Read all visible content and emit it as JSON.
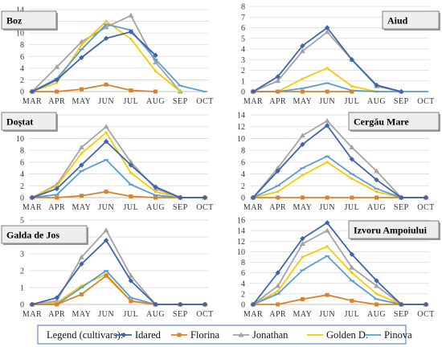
{
  "colors": {
    "Idared": "#3f63ad",
    "Florina": "#d9822b",
    "Jonathan": "#a3a3a3",
    "Golden D.": "#f2cb05",
    "Pinova": "#5b9bd5"
  },
  "legend": {
    "label": "Legend (cultivars):",
    "items": [
      "Idared",
      "Florina",
      "Jonathan",
      "Golden D.",
      "Pinova"
    ]
  },
  "chart_data": [
    {
      "type": "line",
      "title": "Boz",
      "title_position": "top-left",
      "categories": [
        "MAR",
        "APR",
        "MAY",
        "JUN",
        "JUL",
        "AUG",
        "SEP",
        "OCT"
      ],
      "ylim": [
        0,
        14
      ],
      "yticks": [
        0,
        2,
        4,
        6,
        8,
        10,
        12,
        14
      ],
      "grid": true,
      "series": [
        {
          "name": "Idared",
          "values": [
            0,
            2,
            5.8,
            9.1,
            10.2,
            6.2,
            null,
            null
          ]
        },
        {
          "name": "Florina",
          "values": [
            0,
            0,
            0.4,
            1.2,
            0.2,
            0,
            null,
            null
          ]
        },
        {
          "name": "Jonathan",
          "values": [
            0,
            4.2,
            8.5,
            11,
            13,
            5,
            0,
            null
          ]
        },
        {
          "name": "Golden D.",
          "values": [
            0,
            1.5,
            8,
            12,
            9,
            3.5,
            0,
            null
          ]
        },
        {
          "name": "Pinova",
          "values": [
            0,
            2.2,
            7.2,
            11.5,
            10.5,
            5.5,
            1,
            0
          ]
        }
      ]
    },
    {
      "type": "line",
      "title": "Aiud",
      "title_position": "top-right",
      "categories": [
        "MAR",
        "APR",
        "MAY",
        "JUN",
        "JUL",
        "AUG",
        "SEP",
        "OCT"
      ],
      "ylim": [
        0,
        8
      ],
      "yticks": [
        0,
        1,
        2,
        3,
        4,
        5,
        6,
        7,
        8
      ],
      "grid": true,
      "series": [
        {
          "name": "Idared",
          "values": [
            0,
            1.4,
            4.3,
            6,
            3,
            0.6,
            0,
            null
          ]
        },
        {
          "name": "Florina",
          "values": [
            0,
            0,
            0,
            0,
            0,
            null,
            null,
            null
          ]
        },
        {
          "name": "Jonathan",
          "values": [
            0,
            1,
            3.8,
            5.6,
            3,
            0.5,
            0,
            null
          ]
        },
        {
          "name": "Golden D.",
          "values": [
            0,
            0,
            1.2,
            2.2,
            0.5,
            0,
            0,
            null
          ]
        },
        {
          "name": "Pinova",
          "values": [
            0,
            0,
            0.3,
            0.8,
            0.1,
            0,
            0,
            0
          ]
        }
      ]
    },
    {
      "type": "line",
      "title": "Doștat",
      "title_position": "top-left",
      "categories": [
        "MAR",
        "APR",
        "MAY",
        "JUN",
        "JUL",
        "AUG",
        "SEP",
        "OCT"
      ],
      "ylim": [
        0,
        14
      ],
      "yticks": [
        0,
        2,
        4,
        6,
        8,
        10,
        12,
        14
      ],
      "grid": true,
      "series": [
        {
          "name": "Idared",
          "values": [
            0,
            1.5,
            5.5,
            9.5,
            5.5,
            1.8,
            0,
            0
          ]
        },
        {
          "name": "Florina",
          "values": [
            0,
            0,
            0.3,
            1,
            0.2,
            0,
            0,
            0
          ]
        },
        {
          "name": "Jonathan",
          "values": [
            0,
            2.2,
            8.5,
            12,
            6,
            1.5,
            0,
            0
          ]
        },
        {
          "name": "Golden D.",
          "values": [
            0,
            2,
            7.5,
            11,
            4.2,
            1,
            0,
            0
          ]
        },
        {
          "name": "Pinova",
          "values": [
            0,
            0.5,
            4.5,
            6.4,
            2.2,
            0.4,
            0,
            0
          ]
        }
      ]
    },
    {
      "type": "line",
      "title": "Cergău Mare",
      "title_position": "top-right",
      "categories": [
        "MAR",
        "APR",
        "MAY",
        "JUN",
        "JUL",
        "AUG",
        "SEP",
        "OCT"
      ],
      "ylim": [
        0,
        14
      ],
      "yticks": [
        0,
        2,
        4,
        6,
        8,
        10,
        12,
        14
      ],
      "grid": true,
      "series": [
        {
          "name": "Idared",
          "values": [
            0,
            4.5,
            9,
            12.2,
            6.5,
            3,
            0,
            0
          ]
        },
        {
          "name": "Florina",
          "values": [
            0,
            0,
            0,
            0,
            0,
            0,
            0,
            0
          ]
        },
        {
          "name": "Jonathan",
          "values": [
            0,
            5,
            10.5,
            13,
            8.5,
            4.5,
            0,
            0
          ]
        },
        {
          "name": "Golden D.",
          "values": [
            0,
            1,
            3.8,
            6,
            3.2,
            1,
            0,
            0
          ]
        },
        {
          "name": "Pinova",
          "values": [
            0,
            2,
            5,
            7,
            4,
            1.5,
            0,
            0
          ]
        }
      ]
    },
    {
      "type": "line",
      "title": "Galda de Jos",
      "title_position": "top-left",
      "categories": [
        "MAR",
        "APR",
        "MAY",
        "JUN",
        "JUL",
        "AUG",
        "SEP",
        "OCT"
      ],
      "ylim": [
        0,
        5
      ],
      "yticks": [
        0,
        1,
        2,
        3,
        4,
        5
      ],
      "grid": true,
      "series": [
        {
          "name": "Idared",
          "values": [
            0,
            0.4,
            2.4,
            3.8,
            1.4,
            0,
            0,
            0
          ]
        },
        {
          "name": "Florina",
          "values": [
            0,
            0,
            0.6,
            1.7,
            0.2,
            0,
            0,
            0
          ]
        },
        {
          "name": "Jonathan",
          "values": [
            0,
            0.2,
            2.8,
            4.4,
            1.7,
            0,
            0,
            0
          ]
        },
        {
          "name": "Golden D.",
          "values": [
            0,
            0.1,
            1.1,
            1.8,
            0.2,
            0,
            0,
            0
          ]
        },
        {
          "name": "Pinova",
          "values": [
            0,
            0,
            1,
            2,
            0.4,
            0,
            0,
            0
          ]
        }
      ]
    },
    {
      "type": "line",
      "title": "Izvoru Ampoiului",
      "title_position": "top-right",
      "categories": [
        "MAR",
        "APR",
        "MAY",
        "JUN",
        "JUL",
        "AUG",
        "SEP",
        "OCT"
      ],
      "ylim": [
        0,
        16
      ],
      "yticks": [
        0,
        2,
        4,
        6,
        8,
        10,
        12,
        14,
        16
      ],
      "grid": true,
      "series": [
        {
          "name": "Idared",
          "values": [
            0,
            6,
            12.5,
            15.5,
            9.5,
            4.5,
            0,
            0
          ]
        },
        {
          "name": "Florina",
          "values": [
            0,
            0,
            1,
            1.8,
            0.7,
            0,
            0,
            0
          ]
        },
        {
          "name": "Jonathan",
          "values": [
            0,
            3.5,
            11.5,
            14,
            7,
            3.5,
            0,
            0
          ]
        },
        {
          "name": "Golden D.",
          "values": [
            0,
            2.5,
            9,
            11,
            6,
            2,
            0,
            0
          ]
        },
        {
          "name": "Pinova",
          "values": [
            0,
            2,
            6.5,
            9.2,
            4.5,
            1,
            0,
            0
          ]
        }
      ]
    }
  ]
}
